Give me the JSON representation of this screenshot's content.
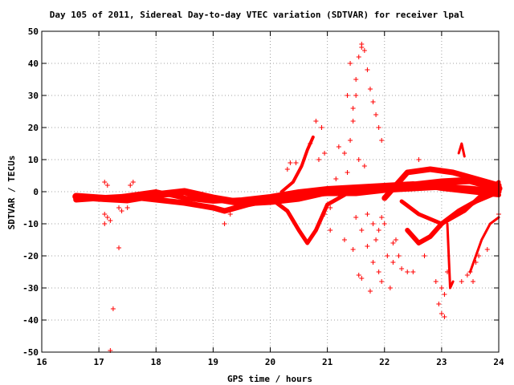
{
  "colors": {
    "series": "#ff0000",
    "grid": "#a0a0a0",
    "axis": "#000000"
  },
  "chart_data": {
    "type": "scatter",
    "title": "Day 105 of 2011, Sidereal Day-to-day VTEC variation (SDTVAR) for receiver lpal",
    "xlabel": "GPS time / hours",
    "ylabel": "SDTVAR / TECUs",
    "xlim": [
      16,
      24
    ],
    "ylim": [
      -50,
      50
    ],
    "xticks": [
      16,
      17,
      18,
      19,
      20,
      21,
      22,
      23,
      24
    ],
    "yticks": [
      -50,
      -40,
      -30,
      -20,
      -10,
      0,
      10,
      20,
      30,
      40,
      50
    ],
    "grid": true,
    "marker": "+",
    "bands": [
      {
        "width": 9,
        "points": [
          [
            16.6,
            -1.5
          ],
          [
            17.0,
            -2.0
          ],
          [
            17.5,
            -2.5
          ],
          [
            18.0,
            -1.0
          ],
          [
            18.5,
            0.0
          ],
          [
            19.0,
            -2.0
          ],
          [
            19.5,
            -3.5
          ],
          [
            20.0,
            -3.0
          ],
          [
            20.5,
            -2.0
          ],
          [
            21.0,
            0.0
          ],
          [
            21.5,
            0.5
          ],
          [
            22.0,
            1.0
          ],
          [
            22.5,
            2.0
          ],
          [
            23.0,
            3.0
          ],
          [
            23.5,
            3.5
          ],
          [
            24.0,
            1.0
          ]
        ]
      },
      {
        "width": 7,
        "points": [
          [
            16.6,
            -2.5
          ],
          [
            17.0,
            -2.0
          ],
          [
            17.5,
            -1.5
          ],
          [
            18.0,
            -2.5
          ],
          [
            18.5,
            -3.5
          ],
          [
            19.0,
            -5.0
          ],
          [
            19.2,
            -6.0
          ],
          [
            19.6,
            -4.0
          ],
          [
            20.0,
            -2.5
          ],
          [
            20.5,
            -1.0
          ],
          [
            21.0,
            -0.5
          ],
          [
            21.5,
            -0.5
          ],
          [
            22.0,
            0.5
          ],
          [
            22.5,
            1.0
          ],
          [
            23.0,
            1.5
          ],
          [
            23.5,
            1.0
          ],
          [
            24.0,
            0.0
          ]
        ]
      },
      {
        "width": 6,
        "points": [
          [
            17.4,
            -1.5
          ],
          [
            18.0,
            0.0
          ],
          [
            18.5,
            -2.0
          ],
          [
            19.0,
            -3.0
          ],
          [
            19.5,
            -2.5
          ],
          [
            20.0,
            -1.5
          ],
          [
            20.5,
            0.0
          ],
          [
            21.0,
            1.0
          ],
          [
            21.5,
            1.5
          ],
          [
            22.0,
            2.0
          ],
          [
            22.5,
            2.5
          ],
          [
            23.0,
            1.0
          ],
          [
            24.0,
            -1.0
          ]
        ]
      },
      {
        "width": 5,
        "points": [
          [
            20.0,
            -2.0
          ],
          [
            20.3,
            -6.0
          ],
          [
            20.5,
            -12.0
          ],
          [
            20.65,
            -16.0
          ],
          [
            20.8,
            -12.0
          ],
          [
            21.0,
            -4.0
          ],
          [
            21.3,
            -1.0
          ]
        ]
      },
      {
        "width": 4,
        "points": [
          [
            20.2,
            0.0
          ],
          [
            20.4,
            3.0
          ],
          [
            20.55,
            8.0
          ],
          [
            20.65,
            13.0
          ],
          [
            20.75,
            17.0
          ]
        ]
      },
      {
        "width": 5,
        "points": [
          [
            22.3,
            -3.0
          ],
          [
            22.6,
            -7.0
          ],
          [
            23.0,
            -10.0
          ],
          [
            23.4,
            -6.0
          ],
          [
            23.7,
            -1.0
          ],
          [
            24.0,
            3.0
          ]
        ]
      },
      {
        "width": 6,
        "points": [
          [
            22.4,
            -12.0
          ],
          [
            22.6,
            -16.0
          ],
          [
            22.8,
            -14.0
          ],
          [
            23.0,
            -10.0
          ],
          [
            23.3,
            -6.0
          ],
          [
            23.6,
            -3.0
          ],
          [
            24.0,
            0.0
          ]
        ]
      },
      {
        "width": 7,
        "points": [
          [
            22.0,
            -2.0
          ],
          [
            22.2,
            2.0
          ],
          [
            22.4,
            6.0
          ],
          [
            22.8,
            7.0
          ],
          [
            23.2,
            6.0
          ],
          [
            23.6,
            4.0
          ],
          [
            24.0,
            2.0
          ]
        ]
      },
      {
        "width": 3,
        "points": [
          [
            23.1,
            -10.0
          ],
          [
            23.15,
            -30.0
          ],
          [
            23.2,
            -28.0
          ]
        ]
      },
      {
        "width": 3,
        "points": [
          [
            23.5,
            -25.0
          ],
          [
            23.7,
            -15.0
          ],
          [
            23.85,
            -10.0
          ],
          [
            24.0,
            -8.0
          ]
        ]
      },
      {
        "width": 3,
        "points": [
          [
            23.3,
            12.0
          ],
          [
            23.35,
            15.0
          ],
          [
            23.4,
            11.0
          ]
        ]
      }
    ],
    "scatter_points": [
      [
        17.1,
        3
      ],
      [
        17.15,
        2
      ],
      [
        17.1,
        -7
      ],
      [
        17.15,
        -8
      ],
      [
        17.1,
        -10
      ],
      [
        17.2,
        -9
      ],
      [
        17.2,
        -49.5
      ],
      [
        17.25,
        -36.5
      ],
      [
        17.35,
        -17.5
      ],
      [
        17.35,
        -5
      ],
      [
        17.4,
        -6
      ],
      [
        17.5,
        -5
      ],
      [
        17.55,
        2
      ],
      [
        17.6,
        3
      ],
      [
        19.2,
        -10
      ],
      [
        19.3,
        -7
      ],
      [
        20.3,
        7
      ],
      [
        20.35,
        9
      ],
      [
        20.45,
        9
      ],
      [
        20.7,
        15
      ],
      [
        20.8,
        22
      ],
      [
        20.85,
        10
      ],
      [
        20.9,
        20
      ],
      [
        20.95,
        12
      ],
      [
        20.95,
        -7
      ],
      [
        21.05,
        -5
      ],
      [
        21.05,
        -12
      ],
      [
        21.15,
        4
      ],
      [
        21.2,
        14
      ],
      [
        21.3,
        12
      ],
      [
        21.3,
        -15
      ],
      [
        21.35,
        6
      ],
      [
        21.4,
        16
      ],
      [
        21.45,
        22
      ],
      [
        21.5,
        35
      ],
      [
        21.55,
        42
      ],
      [
        21.6,
        46
      ],
      [
        21.65,
        44
      ],
      [
        21.7,
        38
      ],
      [
        21.75,
        32
      ],
      [
        21.8,
        28
      ],
      [
        21.85,
        24
      ],
      [
        21.9,
        20
      ],
      [
        21.95,
        16
      ],
      [
        21.45,
        26
      ],
      [
        21.5,
        30
      ],
      [
        21.4,
        40
      ],
      [
        21.6,
        45
      ],
      [
        21.35,
        30
      ],
      [
        21.55,
        10
      ],
      [
        21.65,
        8
      ],
      [
        21.7,
        -7
      ],
      [
        21.8,
        -10
      ],
      [
        21.85,
        -15
      ],
      [
        21.9,
        -25
      ],
      [
        21.95,
        -28
      ],
      [
        22.0,
        -10
      ],
      [
        22.05,
        -20
      ],
      [
        22.1,
        -30
      ],
      [
        22.15,
        -22
      ],
      [
        22.3,
        -24
      ],
      [
        22.4,
        -25
      ],
      [
        22.5,
        -25
      ],
      [
        22.7,
        -20
      ],
      [
        22.9,
        -28
      ],
      [
        22.95,
        -35
      ],
      [
        23.0,
        -38
      ],
      [
        23.05,
        -39
      ],
      [
        23.1,
        -25
      ],
      [
        23.35,
        -28
      ],
      [
        23.5,
        -25
      ],
      [
        23.6,
        -22
      ],
      [
        23.65,
        -20
      ],
      [
        23.8,
        -18
      ],
      [
        24.0,
        -7
      ],
      [
        22.6,
        10
      ],
      [
        22.9,
        -12
      ],
      [
        22.2,
        -15
      ],
      [
        21.9,
        -12
      ],
      [
        21.95,
        -8
      ],
      [
        22.15,
        -16
      ],
      [
        22.25,
        -20
      ],
      [
        21.5,
        -8
      ],
      [
        21.6,
        -12
      ],
      [
        21.7,
        -17
      ],
      [
        21.8,
        -22
      ],
      [
        21.45,
        -18
      ],
      [
        21.55,
        -26
      ],
      [
        21.6,
        -27
      ],
      [
        21.75,
        -31
      ],
      [
        23.0,
        -30
      ],
      [
        23.05,
        -32
      ],
      [
        23.55,
        -28
      ],
      [
        23.45,
        -26
      ]
    ]
  }
}
